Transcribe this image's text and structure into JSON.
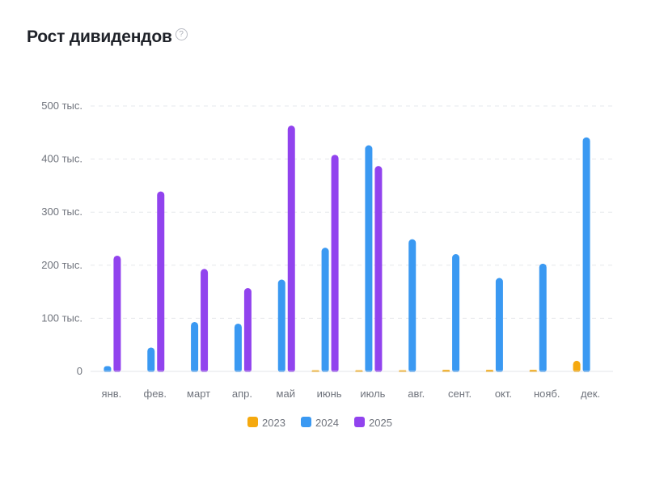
{
  "header": {
    "title": "Рост дивидендов",
    "help_glyph": "?"
  },
  "chart_data": {
    "type": "bar",
    "title": "Рост дивидендов",
    "categories": [
      "янв.",
      "фев.",
      "март",
      "апр.",
      "май",
      "июнь",
      "июль",
      "авг.",
      "сент.",
      "окт.",
      "нояб.",
      "дек."
    ],
    "yticks": [
      {
        "value": 0,
        "label": "0"
      },
      {
        "value": 100000,
        "label": "100 тыс."
      },
      {
        "value": 200000,
        "label": "200 тыс."
      },
      {
        "value": 300000,
        "label": "300 тыс."
      },
      {
        "value": 400000,
        "label": "400 тыс."
      },
      {
        "value": 500000,
        "label": "500 тыс."
      }
    ],
    "ylim": [
      0,
      500000
    ],
    "grid": true,
    "legend_position": "bottom",
    "series": [
      {
        "name": "2023",
        "color": "#f5a90f",
        "values": [
          0,
          0,
          0,
          0,
          0,
          1500,
          1500,
          1500,
          3000,
          3000,
          3000,
          20000
        ]
      },
      {
        "name": "2024",
        "color": "#3a99f2",
        "values": [
          10000,
          45000,
          93000,
          90000,
          173000,
          233000,
          426000,
          249000,
          221000,
          176000,
          203000,
          441000
        ]
      },
      {
        "name": "2025",
        "color": "#9143ee",
        "values": [
          218000,
          339000,
          193000,
          157000,
          463000,
          408000,
          387000,
          0,
          0,
          0,
          0,
          0
        ]
      }
    ]
  }
}
